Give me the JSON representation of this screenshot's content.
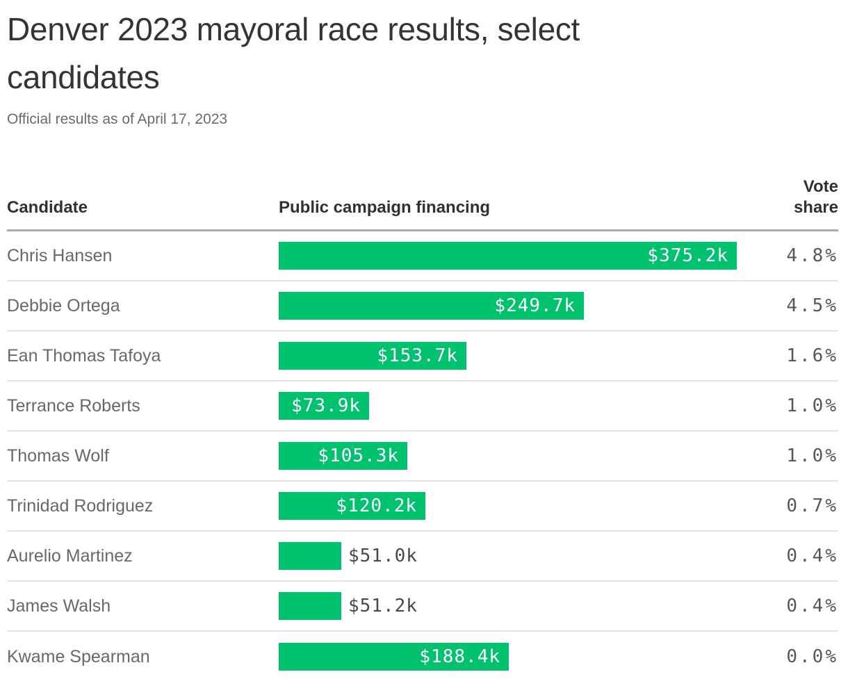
{
  "title": "Denver 2023 mayoral race results, select candidates",
  "subtitle": "Official results as of April 17, 2023",
  "columns": {
    "candidate": "Candidate",
    "financing": "Public campaign financing",
    "vote_share": "Vote\nshare"
  },
  "colors": {
    "bar_green": "#00c16e",
    "header_text": "#2f3133",
    "candidate_text": "#66686b",
    "vote_text": "#55575a",
    "rule_heavy": "#ababab",
    "rule_light": "#e5e5e5"
  },
  "chart_data": {
    "type": "bar",
    "orientation": "horizontal",
    "title": "Denver 2023 mayoral race results, select candidates",
    "subtitle": "Official results as of April 17, 2023",
    "columns": [
      "Candidate",
      "Public campaign financing",
      "Vote share"
    ],
    "value_unit": "USD thousands",
    "max_value_k": 375.2,
    "rows": [
      {
        "candidate": "Chris Hansen",
        "financing_label": "$375.2k",
        "financing_k": 375.2,
        "vote_share": "4.8%"
      },
      {
        "candidate": "Debbie Ortega",
        "financing_label": "$249.7k",
        "financing_k": 249.7,
        "vote_share": "4.5%"
      },
      {
        "candidate": "Ean Thomas Tafoya",
        "financing_label": "$153.7k",
        "financing_k": 153.7,
        "vote_share": "1.6%"
      },
      {
        "candidate": "Terrance Roberts",
        "financing_label": "$73.9k",
        "financing_k": 73.9,
        "vote_share": "1.0%"
      },
      {
        "candidate": "Thomas Wolf",
        "financing_label": "$105.3k",
        "financing_k": 105.3,
        "vote_share": "1.0%"
      },
      {
        "candidate": "Trinidad Rodriguez",
        "financing_label": "$120.2k",
        "financing_k": 120.2,
        "vote_share": "0.7%"
      },
      {
        "candidate": "Aurelio Martinez",
        "financing_label": "$51.0k",
        "financing_k": 51.0,
        "vote_share": "0.4%"
      },
      {
        "candidate": "James Walsh",
        "financing_label": "$51.2k",
        "financing_k": 51.2,
        "vote_share": "0.4%"
      },
      {
        "candidate": "Kwame Spearman",
        "financing_label": "$188.4k",
        "financing_k": 188.4,
        "vote_share": "0.0%"
      }
    ]
  }
}
